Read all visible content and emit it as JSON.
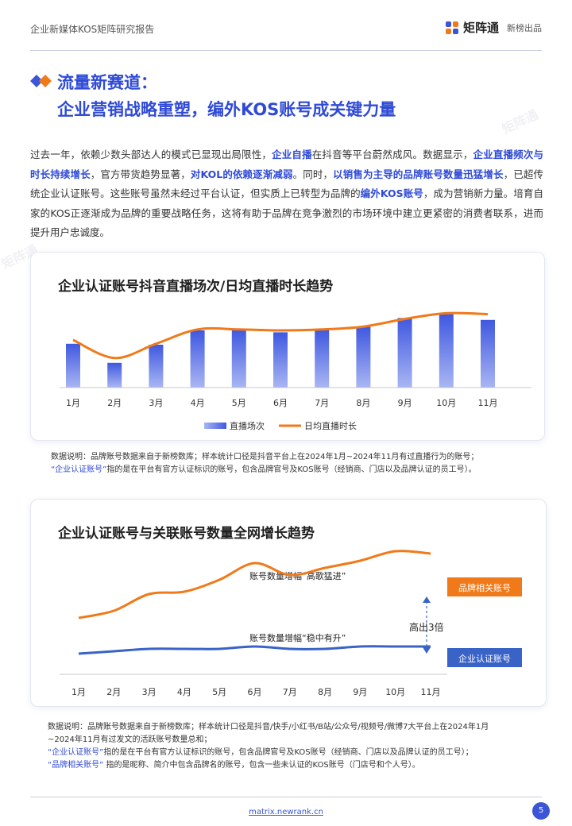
{
  "header": {
    "title": "企业新媒体KOS矩阵研究报告",
    "brand_name": "矩阵通",
    "brand_sub": "新榜出品"
  },
  "watermark_text": "矩阵通",
  "headline": {
    "line1": "流量新赛道：",
    "line2": "企业营销战略重塑，编外KOS账号成关键力量"
  },
  "intro": {
    "parts": [
      {
        "t": "过去一年，依赖少数头部达人的模式已显现出局限性，",
        "hl": false
      },
      {
        "t": "企业自播",
        "hl": true
      },
      {
        "t": "在抖音等平台蔚然成风。数据显示，",
        "hl": false
      },
      {
        "t": "企业直播频次与时长持续增长",
        "hl": true
      },
      {
        "t": "，官方带货趋势显著，",
        "hl": false
      },
      {
        "t": "对KOL的依赖逐渐减弱",
        "hl": true
      },
      {
        "t": "。同时，",
        "hl": false
      },
      {
        "t": "以销售为主导的品牌账号数量迅猛增长",
        "hl": true
      },
      {
        "t": "，已超传统企业认证账号。这些账号虽然未经过平台认证，但实质上已转型为品牌的",
        "hl": false
      },
      {
        "t": "编外KOS账号",
        "hl": true
      },
      {
        "t": "，成为营销新力量。培育自家的KOS正逐渐成为品牌的重要战略任务，这将有助于品牌在竞争激烈的市场环境中建立更紧密的消费者联系，进而提升用户忠诚度。",
        "hl": false
      }
    ]
  },
  "chart1": {
    "title": "企业认证账号抖音直播场次/日均直播时长趋势",
    "note_line1": "数据说明：品牌账号数据来自于新榜数库；样本统计口径是抖音平台上在2024年1月~2024年11月有过直播行为的账号；",
    "note_line2_quoted": "“企业认证账号”",
    "note_line2_rest": "指的是在平台有官方认证标识的账号，包含品牌官号及KOS账号（经销商、门店以及品牌认证的员工号）。"
  },
  "chart2": {
    "title": "企业认证账号与关联账号数量全网增长趋势",
    "annotation_top": "账号数量增幅“高歌猛进”",
    "annotation_bottom": "账号数量增幅“稳中有升”",
    "gap_label": "高出3倍",
    "note_line1": "数据说明：品牌账号数据来自于新榜数库；样本统计口径是抖音/快手/小红书/B站/公众号/视频号/微博7大平台上在2024年1月",
    "note_line2": "~2024年11月有过发文的活跃账号数量总和；",
    "note_line3_quoted": "“企业认证账号”",
    "note_line3_rest": "指的是在平台有官方认证标识的账号，包含品牌官号及KOS账号（经销商、门店以及品牌认证的员工号）；",
    "note_line4_quoted": "“品牌相关账号”",
    "note_line4_rest": " 指的是昵称、简介中包含品牌名的账号，包含一些未认证的KOS账号（门店号和个人号）。"
  },
  "chart_data": [
    {
      "type": "bar",
      "title": "企业认证账号抖音直播场次/日均直播时长趋势",
      "categories": [
        "1月",
        "2月",
        "3月",
        "4月",
        "5月",
        "6月",
        "7月",
        "8月",
        "9月",
        "10月",
        "11月"
      ],
      "series": [
        {
          "name": "直播场次",
          "kind": "bar",
          "color": "#4a63e6",
          "values": [
            46,
            26,
            45,
            60,
            61,
            58,
            61,
            64,
            73,
            77,
            71
          ]
        },
        {
          "name": "日均直播时长",
          "kind": "line",
          "color": "#f07a1a",
          "values": [
            50,
            31,
            46,
            61,
            61,
            60,
            61,
            64,
            72,
            78,
            77
          ]
        }
      ],
      "ylim": [
        0,
        100
      ],
      "legend": "bottom-center",
      "grid": false
    },
    {
      "type": "line",
      "title": "企业认证账号与关联账号数量全网增长趋势",
      "categories": [
        "1月",
        "2月",
        "3月",
        "4月",
        "5月",
        "6月",
        "7月",
        "8月",
        "9月",
        "10月",
        "11月"
      ],
      "series": [
        {
          "name": "品牌相关账号",
          "color": "#f07a1a",
          "values": [
            22,
            25,
            32,
            33,
            38,
            45,
            40,
            43,
            46,
            50,
            49
          ]
        },
        {
          "name": "企业认证账号",
          "color": "#3a63c8",
          "values": [
            7,
            8,
            9,
            9,
            9,
            10,
            9,
            9,
            10,
            10,
            10
          ]
        }
      ],
      "ylim": [
        0,
        60
      ],
      "legend": "right",
      "grid": false
    }
  ],
  "footer": {
    "url": "matrix.newrank.cn",
    "page": "5"
  },
  "colors": {
    "accent": "#2f4ad6",
    "orange": "#f07a1a",
    "bar_blue": "#4a63e6"
  }
}
